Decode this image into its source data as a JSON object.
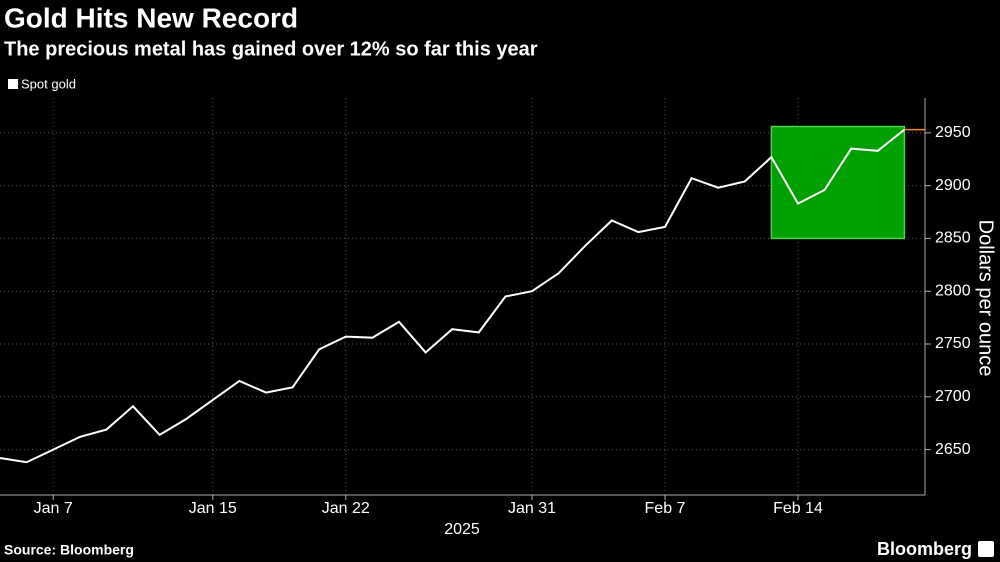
{
  "chart_data": {
    "type": "line",
    "title": "Gold Hits New Record",
    "subtitle": "The precious metal has gained over 12% so far this year",
    "y_axis_label": "Dollars per ounce",
    "x_axis_label": "2025",
    "source": "Source: Bloomberg",
    "logo": "Bloomberg",
    "categories": [
      null,
      null,
      "Jan 7",
      null,
      null,
      null,
      null,
      null,
      "Jan 15",
      null,
      null,
      null,
      null,
      "Jan 22",
      null,
      null,
      null,
      null,
      null,
      null,
      "Jan 31",
      null,
      null,
      null,
      null,
      "Feb 7",
      null,
      null,
      null,
      null,
      "Feb 14",
      null,
      null,
      null,
      null
    ],
    "series": [
      {
        "name": "Spot gold",
        "color": "#ffffff",
        "values": [
          2642,
          2638,
          2650,
          2662,
          2669,
          2691,
          2664,
          2679,
          2697,
          2715,
          2704,
          2709,
          2745,
          2757,
          2756,
          2771,
          2742,
          2764,
          2761,
          2795,
          2800,
          2817,
          2843,
          2867,
          2856,
          2861,
          2907,
          2898,
          2904,
          2927,
          2883,
          2896,
          2935,
          2933,
          2953
        ]
      }
    ],
    "ylim": [
      2607,
      2983
    ],
    "yticks": [
      2650,
      2700,
      2750,
      2800,
      2850,
      2900,
      2950
    ],
    "grid": true,
    "last_value_color": "#f08c28",
    "highlight": {
      "x_range": [
        29,
        34
      ],
      "y_range": [
        2850,
        2956
      ],
      "color": "#00a000",
      "border": "#4cd44c"
    }
  }
}
